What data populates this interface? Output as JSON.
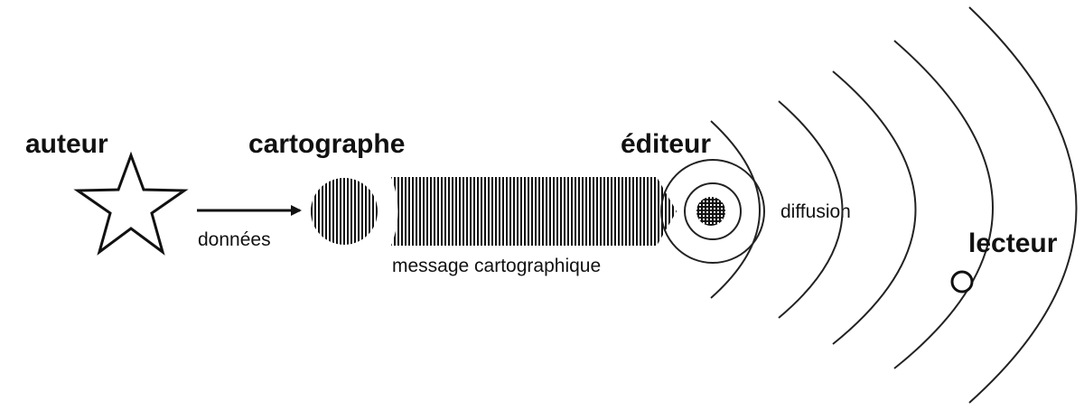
{
  "labels": {
    "author": "auteur",
    "cartographer": "cartographe",
    "publisher": "éditeur",
    "reader": "lecteur",
    "data": "données",
    "message": "message cartographique",
    "diffusion": "diffusion"
  },
  "colors": {
    "ink": "#111111",
    "arc": "#222222",
    "background": "#ffffff"
  },
  "icons": {
    "author": "star-icon",
    "cartographer": "hatched-circle-icon",
    "publisher": "cross-hatched-circle-icon",
    "reader": "hollow-circle-icon"
  }
}
